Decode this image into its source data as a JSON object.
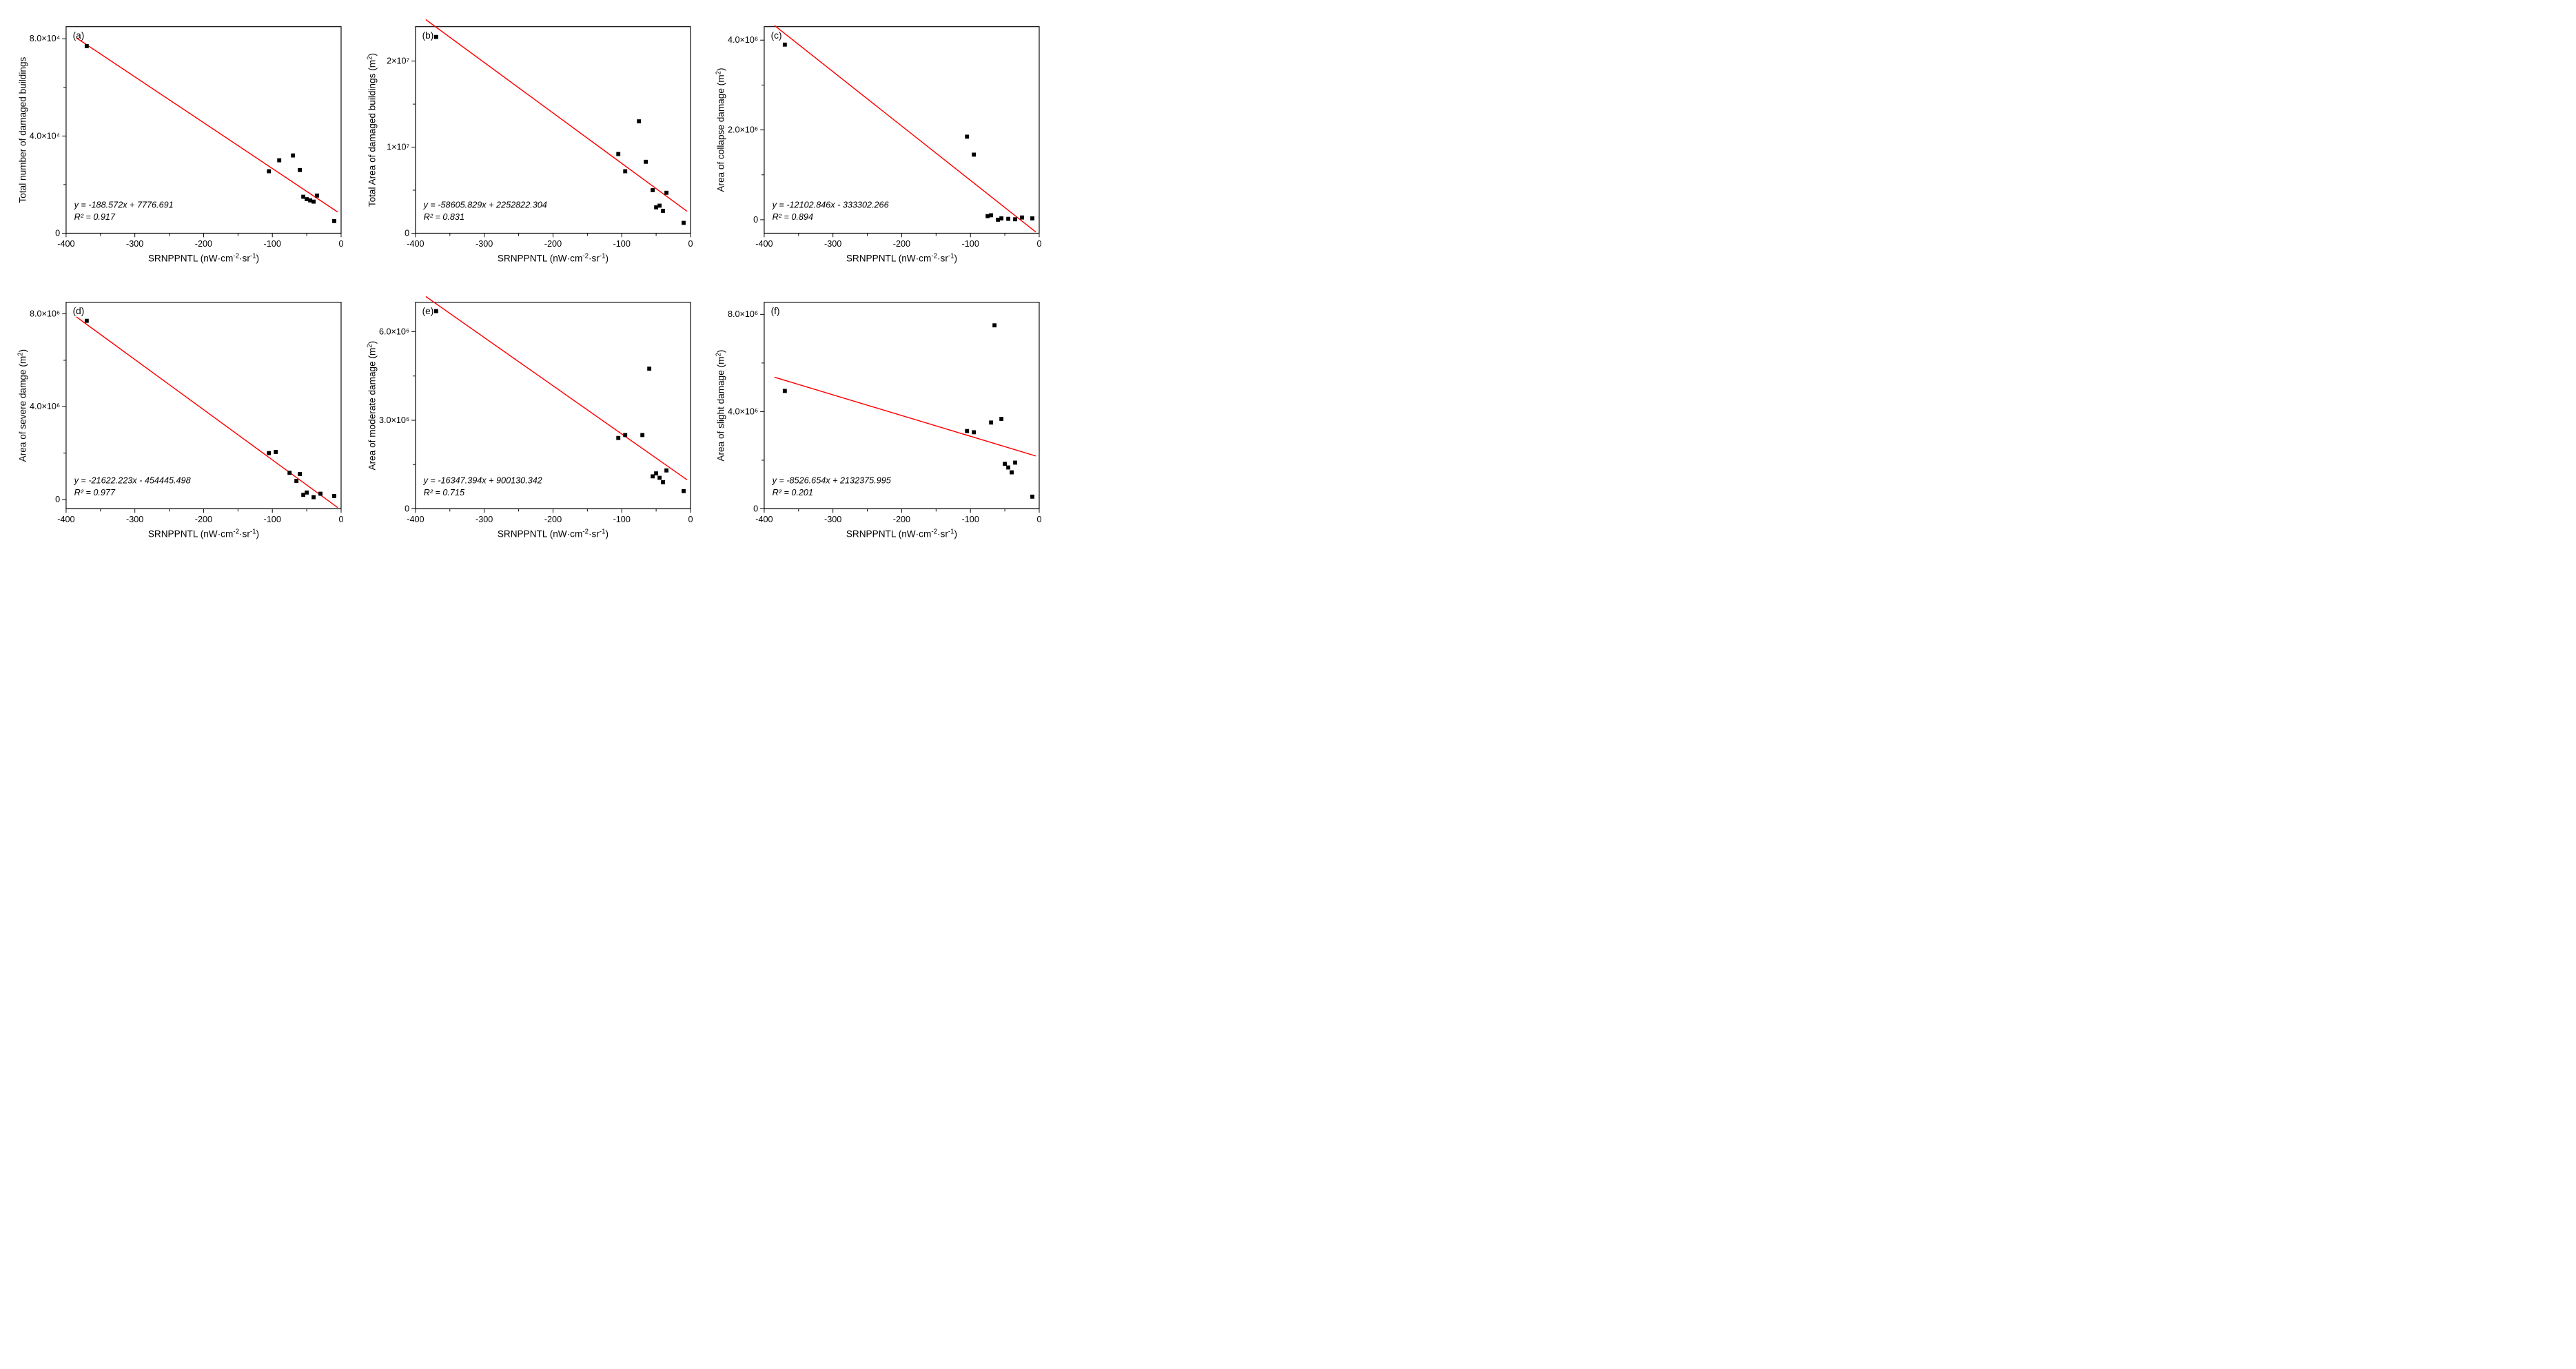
{
  "figure": {
    "layout": {
      "rows": 2,
      "cols": 3,
      "background_color": "#ffffff"
    },
    "common": {
      "x_axis": {
        "label_plain": "SRNPPNTL (nW·cm⁻²·sr⁻¹)",
        "min": -400,
        "max": 0,
        "ticks": [
          -400,
          -300,
          -200,
          -100,
          0
        ]
      },
      "point_color": "#000000",
      "point_size": 6,
      "line_color": "#ff0000",
      "line_width": 1.5,
      "tick_fontsize": 13,
      "label_fontsize": 14,
      "equation_fontsize": 13
    },
    "panels": [
      {
        "id": "a",
        "label": "(a)",
        "y_label": "Total number of damaged buildings",
        "y_min": 0,
        "y_max": 85000,
        "y_ticks": [
          {
            "v": 0,
            "t": "0"
          },
          {
            "v": 40000,
            "t": "4.0×10⁴"
          },
          {
            "v": 80000,
            "t": "8.0×10⁴"
          }
        ],
        "equation": "y = -188.572x + 7776.691",
        "r2": "R² = 0.917",
        "fit": {
          "slope": -188.572,
          "intercept": 7776.691
        },
        "points": [
          {
            "x": -370,
            "y": 77000
          },
          {
            "x": -105,
            "y": 25500
          },
          {
            "x": -90,
            "y": 30000
          },
          {
            "x": -70,
            "y": 32000
          },
          {
            "x": -60,
            "y": 26000
          },
          {
            "x": -55,
            "y": 15000
          },
          {
            "x": -50,
            "y": 14000
          },
          {
            "x": -45,
            "y": 13500
          },
          {
            "x": -40,
            "y": 13000
          },
          {
            "x": -35,
            "y": 15500
          },
          {
            "x": -10,
            "y": 5000
          }
        ]
      },
      {
        "id": "b",
        "label": "(b)",
        "y_label": "Total Area of damaged buildings (m²)",
        "y_min": 0,
        "y_max": 24000000,
        "y_ticks": [
          {
            "v": 0,
            "t": "0"
          },
          {
            "v": 10000000,
            "t": "1×10⁷"
          },
          {
            "v": 20000000,
            "t": "2×10⁷"
          }
        ],
        "equation": "y = -58605.829x + 2252822.304",
        "r2": "R² = 0.831",
        "fit": {
          "slope": -58605.829,
          "intercept": 2252822.304
        },
        "points": [
          {
            "x": -370,
            "y": 22800000
          },
          {
            "x": -105,
            "y": 9200000
          },
          {
            "x": -95,
            "y": 7200000
          },
          {
            "x": -75,
            "y": 13000000
          },
          {
            "x": -65,
            "y": 8300000
          },
          {
            "x": -55,
            "y": 5000000
          },
          {
            "x": -50,
            "y": 3000000
          },
          {
            "x": -45,
            "y": 3200000
          },
          {
            "x": -40,
            "y": 2600000
          },
          {
            "x": -35,
            "y": 4700000
          },
          {
            "x": -10,
            "y": 1200000
          }
        ]
      },
      {
        "id": "c",
        "label": "(c)",
        "y_label": "Area of collapse damage (m²)",
        "y_min": -300000,
        "y_max": 4300000,
        "y_ticks": [
          {
            "v": 0,
            "t": "0"
          },
          {
            "v": 2000000,
            "t": "2.0×10⁶"
          },
          {
            "v": 4000000,
            "t": "4.0×10⁶"
          }
        ],
        "equation": "y = -12102.846x - 333302.266",
        "r2": "R² = 0.894",
        "fit": {
          "slope": -12102.846,
          "intercept": -333302.266
        },
        "points": [
          {
            "x": -370,
            "y": 3900000
          },
          {
            "x": -105,
            "y": 1850000
          },
          {
            "x": -95,
            "y": 1450000
          },
          {
            "x": -75,
            "y": 80000
          },
          {
            "x": -70,
            "y": 100000
          },
          {
            "x": -60,
            "y": 0
          },
          {
            "x": -55,
            "y": 30000
          },
          {
            "x": -45,
            "y": 20000
          },
          {
            "x": -35,
            "y": 10000
          },
          {
            "x": -25,
            "y": 50000
          },
          {
            "x": -10,
            "y": 30000
          }
        ]
      },
      {
        "id": "d",
        "label": "(d)",
        "y_label": "Area of severe damge (m²)",
        "y_min": -400000,
        "y_max": 8500000,
        "y_ticks": [
          {
            "v": 0,
            "t": "0"
          },
          {
            "v": 4000000,
            "t": "4.0×10⁶"
          },
          {
            "v": 8000000,
            "t": "8.0×10⁶"
          }
        ],
        "equation": "y = -21622.223x - 454445.498",
        "r2": "R² = 0.977",
        "fit": {
          "slope": -21622.223,
          "intercept": -454445.498
        },
        "points": [
          {
            "x": -370,
            "y": 7700000
          },
          {
            "x": -105,
            "y": 2000000
          },
          {
            "x": -95,
            "y": 2050000
          },
          {
            "x": -75,
            "y": 1150000
          },
          {
            "x": -65,
            "y": 800000
          },
          {
            "x": -60,
            "y": 1100000
          },
          {
            "x": -55,
            "y": 200000
          },
          {
            "x": -50,
            "y": 300000
          },
          {
            "x": -40,
            "y": 100000
          },
          {
            "x": -30,
            "y": 250000
          },
          {
            "x": -10,
            "y": 150000
          }
        ]
      },
      {
        "id": "e",
        "label": "(e)",
        "y_label": "Area of moderate damage (m²)",
        "y_min": 0,
        "y_max": 7000000,
        "y_ticks": [
          {
            "v": 0,
            "t": "0"
          },
          {
            "v": 3000000,
            "t": "3.0×10⁶"
          },
          {
            "v": 6000000,
            "t": "6.0×10⁶"
          }
        ],
        "equation": "y = -16347.394x + 900130.342",
        "r2": "R² = 0.715",
        "fit": {
          "slope": -16347.394,
          "intercept": 900130.342
        },
        "points": [
          {
            "x": -370,
            "y": 6700000
          },
          {
            "x": -105,
            "y": 2400000
          },
          {
            "x": -95,
            "y": 2500000
          },
          {
            "x": -70,
            "y": 2500000
          },
          {
            "x": -60,
            "y": 4750000
          },
          {
            "x": -55,
            "y": 1100000
          },
          {
            "x": -50,
            "y": 1200000
          },
          {
            "x": -45,
            "y": 1050000
          },
          {
            "x": -40,
            "y": 900000
          },
          {
            "x": -35,
            "y": 1300000
          },
          {
            "x": -10,
            "y": 600000
          }
        ]
      },
      {
        "id": "f",
        "label": "(f)",
        "y_label": "Area of slight damage (m²)",
        "y_min": 0,
        "y_max": 8500000,
        "y_ticks": [
          {
            "v": 0,
            "t": "0"
          },
          {
            "v": 4000000,
            "t": "4.0×10⁶"
          },
          {
            "v": 8000000,
            "t": "8.0×10⁶"
          }
        ],
        "equation": "y = -8526.654x + 2132375.995",
        "r2": "R² = 0.201",
        "fit": {
          "slope": -8526.654,
          "intercept": 2132375.995
        },
        "points": [
          {
            "x": -370,
            "y": 4850000
          },
          {
            "x": -105,
            "y": 3200000
          },
          {
            "x": -95,
            "y": 3150000
          },
          {
            "x": -70,
            "y": 3550000
          },
          {
            "x": -65,
            "y": 7550000
          },
          {
            "x": -55,
            "y": 3700000
          },
          {
            "x": -50,
            "y": 1850000
          },
          {
            "x": -45,
            "y": 1700000
          },
          {
            "x": -40,
            "y": 1500000
          },
          {
            "x": -35,
            "y": 1900000
          },
          {
            "x": -10,
            "y": 500000
          }
        ]
      }
    ]
  }
}
